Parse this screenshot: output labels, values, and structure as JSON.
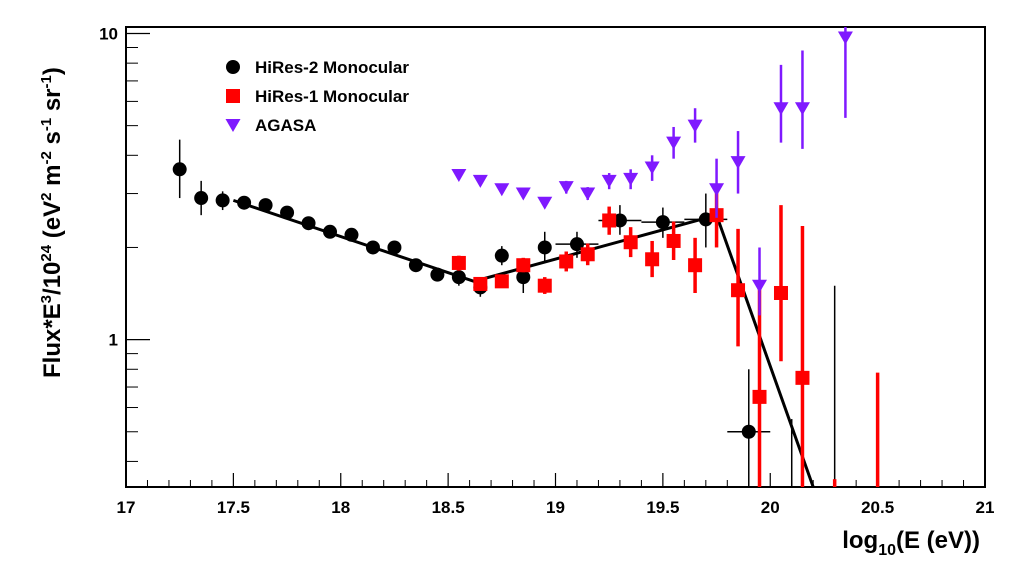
{
  "chart_data": {
    "type": "scatter",
    "title": "",
    "xlabel": {
      "base": "log",
      "sub": "10",
      "rest": "(E (eV))"
    },
    "ylabel": {
      "p1": "Flux*E",
      "s1": "3",
      "p2": "/10",
      "s2": "24",
      "p3": " (eV",
      "s3": "2",
      "p4": " m",
      "s4": "-2",
      "p5": " s",
      "s5": "-1",
      "p6": " sr",
      "s6": "-1",
      "p7": ")"
    },
    "xlim": [
      17,
      21
    ],
    "ylim": [
      0.33,
      10.5
    ],
    "y_scale": "log",
    "grid": false,
    "legend_position": "top-left",
    "x_ticks": [
      {
        "v": 17,
        "label": "17"
      },
      {
        "v": 17.5,
        "label": "17.5"
      },
      {
        "v": 18,
        "label": "18"
      },
      {
        "v": 18.5,
        "label": "18.5"
      },
      {
        "v": 19,
        "label": "19"
      },
      {
        "v": 19.5,
        "label": "19.5"
      },
      {
        "v": 20,
        "label": "20"
      },
      {
        "v": 20.5,
        "label": "20.5"
      },
      {
        "v": 21,
        "label": "21"
      }
    ],
    "y_ticks": [
      {
        "v": 1,
        "label": "1"
      },
      {
        "v": 10,
        "label": "10"
      }
    ],
    "series": [
      {
        "name": "HiRes-2 Monocular",
        "marker": "circle",
        "color": "#000000",
        "points": [
          {
            "x": 17.25,
            "y": 3.6,
            "ylo": 2.9,
            "yhi": 4.5
          },
          {
            "x": 17.35,
            "y": 2.9,
            "ylo": 2.55,
            "yhi": 3.3
          },
          {
            "x": 17.45,
            "y": 2.85,
            "ylo": 2.65,
            "yhi": 3.05
          },
          {
            "x": 17.55,
            "y": 2.8,
            "ylo": 2.7,
            "yhi": 2.9
          },
          {
            "x": 17.65,
            "y": 2.75,
            "ylo": 2.65,
            "yhi": 2.85
          },
          {
            "x": 17.75,
            "y": 2.6,
            "ylo": 2.52,
            "yhi": 2.68
          },
          {
            "x": 17.85,
            "y": 2.4,
            "ylo": 2.33,
            "yhi": 2.47
          },
          {
            "x": 17.95,
            "y": 2.25,
            "ylo": 2.19,
            "yhi": 2.31
          },
          {
            "x": 18.05,
            "y": 2.2,
            "ylo": 2.13,
            "yhi": 2.27
          },
          {
            "x": 18.15,
            "y": 2.0,
            "ylo": 1.93,
            "yhi": 2.07
          },
          {
            "x": 18.25,
            "y": 2.0,
            "ylo": 1.92,
            "yhi": 2.08
          },
          {
            "x": 18.35,
            "y": 1.75,
            "ylo": 1.68,
            "yhi": 1.82
          },
          {
            "x": 18.45,
            "y": 1.63,
            "ylo": 1.55,
            "yhi": 1.71
          },
          {
            "x": 18.55,
            "y": 1.6,
            "ylo": 1.5,
            "yhi": 1.7
          },
          {
            "x": 18.65,
            "y": 1.48,
            "ylo": 1.38,
            "yhi": 1.58
          },
          {
            "x": 18.75,
            "y": 1.88,
            "ylo": 1.75,
            "yhi": 2.02
          },
          {
            "x": 18.85,
            "y": 1.6,
            "ylo": 1.42,
            "yhi": 1.78
          },
          {
            "x": 18.95,
            "y": 2.0,
            "ylo": 1.8,
            "yhi": 2.25
          },
          {
            "x": 19.1,
            "y": 2.05,
            "ylo": 1.85,
            "yhi": 2.25,
            "xlo": 19.0,
            "xhi": 19.2
          },
          {
            "x": 19.3,
            "y": 2.45,
            "ylo": 2.2,
            "yhi": 2.75,
            "xlo": 19.2,
            "xhi": 19.4
          },
          {
            "x": 19.5,
            "y": 2.42,
            "ylo": 2.15,
            "yhi": 2.7,
            "xlo": 19.4,
            "xhi": 19.6
          },
          {
            "x": 19.7,
            "y": 2.47,
            "ylo": 2.0,
            "yhi": 3.0,
            "xlo": 19.6,
            "xhi": 19.8
          },
          {
            "x": 19.9,
            "y": 0.5,
            "ylo": 0.3,
            "yhi": 0.8,
            "xlo": 19.8,
            "xhi": 20.0
          },
          {
            "x": 20.1,
            "y": 0.3,
            "ylo": 0.3,
            "yhi": 0.55
          },
          {
            "x": 20.3,
            "y": 0.3,
            "ylo": 0.3,
            "yhi": 1.5
          }
        ]
      },
      {
        "name": "HiRes-1 Monocular",
        "marker": "square",
        "color": "#ff0000",
        "points": [
          {
            "x": 18.55,
            "y": 1.78,
            "ylo": 1.68,
            "yhi": 1.88
          },
          {
            "x": 18.65,
            "y": 1.52,
            "ylo": 1.45,
            "yhi": 1.6
          },
          {
            "x": 18.75,
            "y": 1.55,
            "ylo": 1.48,
            "yhi": 1.63
          },
          {
            "x": 18.85,
            "y": 1.75,
            "ylo": 1.66,
            "yhi": 1.85
          },
          {
            "x": 18.95,
            "y": 1.5,
            "ylo": 1.41,
            "yhi": 1.6
          },
          {
            "x": 19.05,
            "y": 1.8,
            "ylo": 1.67,
            "yhi": 1.94
          },
          {
            "x": 19.15,
            "y": 1.9,
            "ylo": 1.75,
            "yhi": 2.06
          },
          {
            "x": 19.25,
            "y": 2.45,
            "ylo": 2.2,
            "yhi": 2.72
          },
          {
            "x": 19.35,
            "y": 2.08,
            "ylo": 1.86,
            "yhi": 2.33
          },
          {
            "x": 19.45,
            "y": 1.83,
            "ylo": 1.6,
            "yhi": 2.1
          },
          {
            "x": 19.55,
            "y": 2.1,
            "ylo": 1.82,
            "yhi": 2.43
          },
          {
            "x": 19.65,
            "y": 1.75,
            "ylo": 1.42,
            "yhi": 2.15
          },
          {
            "x": 19.75,
            "y": 2.55,
            "ylo": 2.0,
            "yhi": 3.2
          },
          {
            "x": 19.85,
            "y": 1.45,
            "ylo": 0.95,
            "yhi": 2.3
          },
          {
            "x": 19.95,
            "y": 0.65,
            "ylo": 0.3,
            "yhi": 1.5
          },
          {
            "x": 20.05,
            "y": 1.42,
            "ylo": 0.85,
            "yhi": 2.75
          },
          {
            "x": 20.15,
            "y": 0.75,
            "ylo": 0.3,
            "yhi": 2.35
          },
          {
            "x": 20.3,
            "y": 0.3,
            "ylo": 0.3,
            "yhi": 0.35
          },
          {
            "x": 20.5,
            "y": 0.3,
            "ylo": 0.3,
            "yhi": 0.78
          }
        ]
      },
      {
        "name": "AGASA",
        "marker": "triangle-down",
        "color": "#7f19ff",
        "points": [
          {
            "x": 18.55,
            "y": 3.45,
            "ylo": 3.35,
            "yhi": 3.55
          },
          {
            "x": 18.65,
            "y": 3.3,
            "ylo": 3.2,
            "yhi": 3.4
          },
          {
            "x": 18.75,
            "y": 3.1,
            "ylo": 3.0,
            "yhi": 3.2
          },
          {
            "x": 18.85,
            "y": 3.0,
            "ylo": 2.9,
            "yhi": 3.1
          },
          {
            "x": 18.95,
            "y": 2.8,
            "ylo": 2.7,
            "yhi": 2.9
          },
          {
            "x": 19.05,
            "y": 3.15,
            "ylo": 3.0,
            "yhi": 3.3
          },
          {
            "x": 19.15,
            "y": 3.0,
            "ylo": 2.86,
            "yhi": 3.15
          },
          {
            "x": 19.25,
            "y": 3.3,
            "ylo": 3.1,
            "yhi": 3.5
          },
          {
            "x": 19.35,
            "y": 3.35,
            "ylo": 3.1,
            "yhi": 3.6
          },
          {
            "x": 19.45,
            "y": 3.65,
            "ylo": 3.3,
            "yhi": 4.0
          },
          {
            "x": 19.55,
            "y": 4.4,
            "ylo": 3.9,
            "yhi": 4.95
          },
          {
            "x": 19.65,
            "y": 5.0,
            "ylo": 4.4,
            "yhi": 5.7
          },
          {
            "x": 19.75,
            "y": 3.1,
            "ylo": 2.5,
            "yhi": 3.9
          },
          {
            "x": 19.85,
            "y": 3.8,
            "ylo": 3.0,
            "yhi": 4.8
          },
          {
            "x": 19.95,
            "y": 1.5,
            "ylo": 1.2,
            "yhi": 2.0
          },
          {
            "x": 20.05,
            "y": 5.7,
            "ylo": 4.4,
            "yhi": 7.9
          },
          {
            "x": 20.15,
            "y": 5.7,
            "ylo": 4.2,
            "yhi": 8.8
          },
          {
            "x": 20.35,
            "y": 9.7,
            "ylo": 5.3,
            "yhi": 10.5
          }
        ]
      }
    ],
    "fit_line": [
      {
        "x": 17.5,
        "y": 2.85
      },
      {
        "x": 18.62,
        "y": 1.55
      },
      {
        "x": 19.75,
        "y": 2.55
      },
      {
        "x": 20.2,
        "y": 0.3
      }
    ]
  }
}
